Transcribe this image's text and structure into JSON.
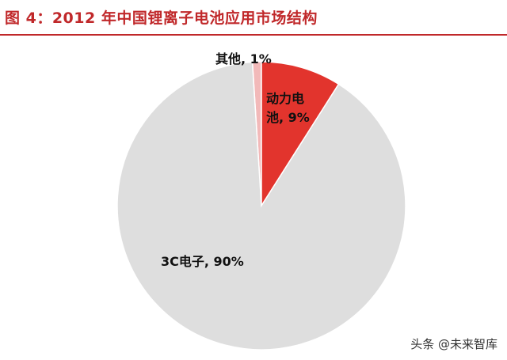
{
  "title": "图 4：2012 年中国锂离子电池应用市场结构",
  "colors": {
    "title": "#c0282a",
    "slice_main": "#dedede",
    "slice_accent": "#e2342d",
    "slice_small": "#f2b9b9",
    "slice_border": "#ffffff"
  },
  "chart_data": {
    "type": "pie",
    "title": "图 4：2012 年中国锂离子电池应用市场结构",
    "slices": [
      {
        "name": "其他",
        "value": 1,
        "label": "其他, 1%",
        "color": "#f2b9b9"
      },
      {
        "name": "动力电池",
        "value": 9,
        "label_lines": [
          "动力电",
          "池, 9%"
        ],
        "color": "#e2342d"
      },
      {
        "name": "3C电子",
        "value": 90,
        "label": "3C电子, 90%",
        "color": "#dedede"
      }
    ]
  },
  "watermark": "头条 @未来智库"
}
